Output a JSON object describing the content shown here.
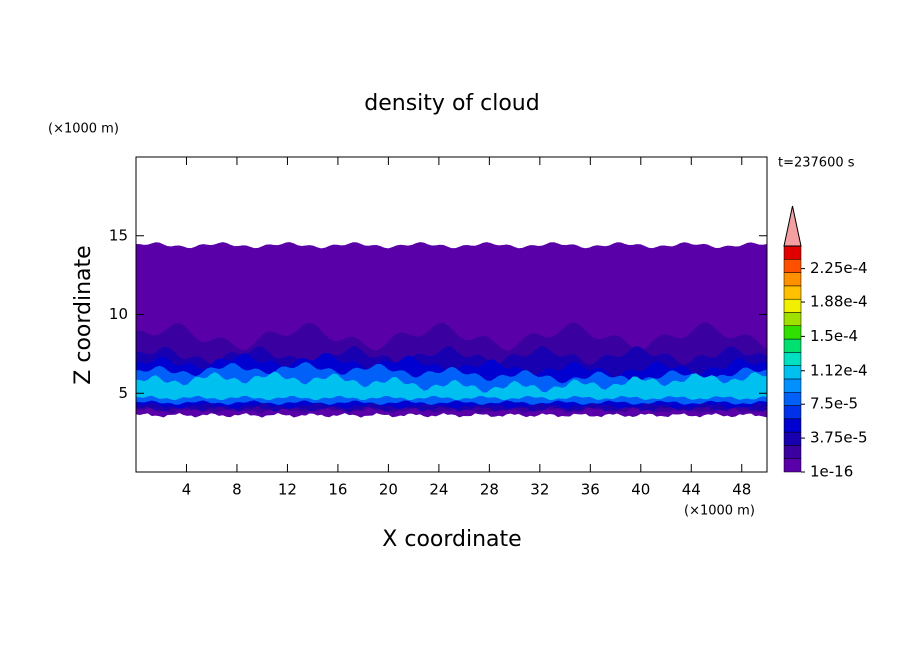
{
  "chart_data": {
    "type": "contour",
    "title": "density of cloud",
    "xlabel": "X coordinate",
    "ylabel": "Z coordinate",
    "xunit": "(×1000 m)",
    "yunit": "(×1000 m)",
    "time_label": "t=237600 s",
    "xlim": [
      0,
      50
    ],
    "xticks": [
      4,
      8,
      12,
      16,
      20,
      24,
      28,
      32,
      36,
      40,
      44,
      48
    ],
    "ylim": [
      0,
      20
    ],
    "yticks": [
      5,
      10,
      15
    ],
    "colorbar": {
      "lim": [
        0,
        0.00025
      ],
      "ticks": [
        {
          "value": 1e-16,
          "label": "1e-16"
        },
        {
          "value": 3.75e-05,
          "label": "3.75e-5"
        },
        {
          "value": 7.5e-05,
          "label": "7.5e-5"
        },
        {
          "value": 0.000112,
          "label": "1.12e-4"
        },
        {
          "value": 0.00015,
          "label": "1.5e-4"
        },
        {
          "value": 0.000188,
          "label": "1.88e-4"
        },
        {
          "value": 0.000225,
          "label": "2.25e-4"
        }
      ],
      "colors": [
        "#5a00a8",
        "#3a00a0",
        "#1800b0",
        "#0000d0",
        "#0030e8",
        "#0060f8",
        "#0090ff",
        "#00c0f0",
        "#00e0c0",
        "#00e070",
        "#30e000",
        "#a0e000",
        "#f0f000",
        "#ffc000",
        "#ff9000",
        "#ff5000",
        "#e00000"
      ],
      "extend_color": "#f4a0a0"
    }
  }
}
